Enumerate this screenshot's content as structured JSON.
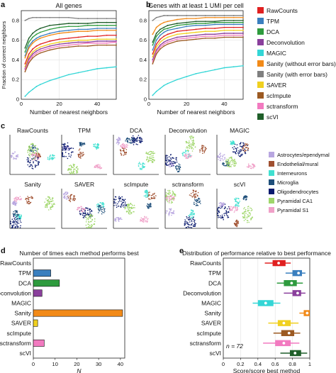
{
  "panel_labels": {
    "a": "a",
    "b": "b",
    "c": "c",
    "d": "d",
    "e": "e"
  },
  "colors": {
    "RawCounts": "#e02020",
    "TPM": "#3a7fbf",
    "DCA": "#2e9b3e",
    "Deconvolution": "#8a3f9c",
    "MAGIC": "#33d6d6",
    "Sanity (without error bars)": "#f28a18",
    "Sanity (with error bars)": "#7f7f7f",
    "SAVER": "#f0d020",
    "scImpute": "#9c5a22",
    "sctransform": "#f27ac0",
    "scVI": "#1f5f2a"
  },
  "legend_methods": [
    "RawCounts",
    "TPM",
    "DCA",
    "Deconvolution",
    "MAGIC",
    "Sanity (without error bars)",
    "Sanity (with error bars)",
    "SAVER",
    "scImpute",
    "sctransform",
    "scVI"
  ],
  "cell_types": [
    {
      "name": "Astrocytes/ependymal",
      "color": "#b8a6e0"
    },
    {
      "name": "Endothelial/mural",
      "color": "#a05030"
    },
    {
      "name": "Interneurons",
      "color": "#40e0d0"
    },
    {
      "name": "Microglia",
      "color": "#1f4f7a"
    },
    {
      "name": "Oligodendrocytes",
      "color": "#0a1a6e"
    },
    {
      "name": "Pyramidal CA1",
      "color": "#9fd66a"
    },
    {
      "name": "Pyramidal S1",
      "color": "#f0a0c8"
    }
  ],
  "umap_titles": [
    "RawCounts",
    "TPM",
    "DCA",
    "Deconvolution",
    "MAGIC",
    "Sanity",
    "SAVER",
    "scImpute",
    "sctransform",
    "scVI"
  ],
  "chart_data": [
    {
      "type": "line",
      "title": "All genes",
      "xlabel": "Number of nearest neighbors",
      "ylabel": "Fraction of correct neighbors",
      "xlim": [
        0,
        50
      ],
      "ylim": [
        0,
        0.9
      ],
      "xticks": [
        0,
        20,
        40
      ],
      "yticks": [
        0,
        0.2,
        0.4,
        0.6,
        0.8
      ],
      "grid": true,
      "x": [
        2,
        4,
        6,
        8,
        10,
        15,
        20,
        25,
        30,
        35,
        40,
        45,
        50
      ],
      "series": [
        {
          "name": "Sanity (with error bars)",
          "values": [
            0.8,
            0.82,
            0.83,
            0.83,
            0.83,
            0.83,
            0.83,
            0.83,
            0.82,
            0.82,
            0.82,
            0.82,
            0.82
          ]
        },
        {
          "name": "scVI",
          "values": [
            0.52,
            0.62,
            0.67,
            0.7,
            0.72,
            0.75,
            0.76,
            0.77,
            0.77,
            0.77,
            0.78,
            0.78,
            0.78
          ]
        },
        {
          "name": "DCA",
          "values": [
            0.48,
            0.58,
            0.63,
            0.66,
            0.68,
            0.71,
            0.73,
            0.74,
            0.74,
            0.75,
            0.75,
            0.75,
            0.75
          ]
        },
        {
          "name": "TPM",
          "values": [
            0.44,
            0.54,
            0.59,
            0.62,
            0.64,
            0.67,
            0.69,
            0.7,
            0.71,
            0.71,
            0.72,
            0.72,
            0.72
          ]
        },
        {
          "name": "Sanity (without error bars)",
          "values": [
            0.42,
            0.52,
            0.57,
            0.6,
            0.62,
            0.65,
            0.67,
            0.68,
            0.69,
            0.69,
            0.7,
            0.7,
            0.7
          ]
        },
        {
          "name": "RawCounts",
          "values": [
            0.36,
            0.46,
            0.51,
            0.54,
            0.56,
            0.59,
            0.61,
            0.62,
            0.63,
            0.64,
            0.64,
            0.65,
            0.65
          ]
        },
        {
          "name": "SAVER",
          "values": [
            0.33,
            0.43,
            0.48,
            0.51,
            0.53,
            0.56,
            0.58,
            0.59,
            0.6,
            0.6,
            0.61,
            0.61,
            0.61
          ]
        },
        {
          "name": "Deconvolution",
          "values": [
            0.31,
            0.41,
            0.46,
            0.49,
            0.51,
            0.54,
            0.56,
            0.57,
            0.58,
            0.58,
            0.59,
            0.59,
            0.59
          ]
        },
        {
          "name": "sctransform",
          "values": [
            0.3,
            0.39,
            0.44,
            0.47,
            0.49,
            0.52,
            0.54,
            0.55,
            0.56,
            0.57,
            0.57,
            0.57,
            0.58
          ]
        },
        {
          "name": "scImpute",
          "values": [
            0.28,
            0.37,
            0.42,
            0.45,
            0.47,
            0.5,
            0.52,
            0.53,
            0.54,
            0.54,
            0.55,
            0.55,
            0.55
          ]
        },
        {
          "name": "MAGIC",
          "values": [
            0.03,
            0.07,
            0.1,
            0.13,
            0.15,
            0.19,
            0.22,
            0.25,
            0.27,
            0.29,
            0.31,
            0.32,
            0.33
          ]
        }
      ]
    },
    {
      "type": "line",
      "title": "Genes with at least 1 UMI per cell",
      "xlabel": "Number of nearest neighbors",
      "ylabel": "",
      "xlim": [
        0,
        50
      ],
      "ylim": [
        0,
        0.9
      ],
      "xticks": [
        0,
        20,
        40
      ],
      "yticks": [
        0,
        0.2,
        0.4,
        0.6,
        0.8
      ],
      "grid": true,
      "x": [
        2,
        4,
        6,
        8,
        10,
        15,
        20,
        25,
        30,
        35,
        40,
        45,
        50
      ],
      "series": [
        {
          "name": "Sanity (with error bars)",
          "values": [
            0.8,
            0.83,
            0.84,
            0.85,
            0.85,
            0.85,
            0.85,
            0.85,
            0.85,
            0.85,
            0.85,
            0.85,
            0.85
          ]
        },
        {
          "name": "Sanity (without error bars)",
          "values": [
            0.66,
            0.73,
            0.76,
            0.78,
            0.79,
            0.81,
            0.82,
            0.82,
            0.83,
            0.83,
            0.83,
            0.83,
            0.83
          ]
        },
        {
          "name": "scVI",
          "values": [
            0.58,
            0.67,
            0.71,
            0.73,
            0.75,
            0.77,
            0.78,
            0.79,
            0.79,
            0.79,
            0.8,
            0.8,
            0.8
          ]
        },
        {
          "name": "DCA",
          "values": [
            0.55,
            0.64,
            0.68,
            0.71,
            0.72,
            0.75,
            0.76,
            0.77,
            0.77,
            0.78,
            0.78,
            0.78,
            0.78
          ]
        },
        {
          "name": "TPM",
          "values": [
            0.5,
            0.6,
            0.65,
            0.68,
            0.7,
            0.72,
            0.74,
            0.75,
            0.75,
            0.76,
            0.76,
            0.76,
            0.76
          ]
        },
        {
          "name": "RawCounts",
          "values": [
            0.46,
            0.56,
            0.61,
            0.64,
            0.66,
            0.69,
            0.7,
            0.71,
            0.72,
            0.72,
            0.73,
            0.73,
            0.73
          ]
        },
        {
          "name": "SAVER",
          "values": [
            0.43,
            0.53,
            0.58,
            0.61,
            0.63,
            0.66,
            0.67,
            0.68,
            0.69,
            0.69,
            0.7,
            0.7,
            0.7
          ]
        },
        {
          "name": "Deconvolution",
          "values": [
            0.4,
            0.5,
            0.55,
            0.58,
            0.6,
            0.63,
            0.64,
            0.65,
            0.66,
            0.66,
            0.67,
            0.67,
            0.67
          ]
        },
        {
          "name": "sctransform",
          "values": [
            0.38,
            0.48,
            0.53,
            0.56,
            0.58,
            0.61,
            0.62,
            0.63,
            0.64,
            0.64,
            0.65,
            0.65,
            0.65
          ]
        },
        {
          "name": "scImpute",
          "values": [
            0.36,
            0.46,
            0.51,
            0.54,
            0.56,
            0.59,
            0.6,
            0.61,
            0.62,
            0.62,
            0.63,
            0.63,
            0.63
          ]
        },
        {
          "name": "MAGIC",
          "values": [
            0.04,
            0.08,
            0.11,
            0.14,
            0.16,
            0.2,
            0.23,
            0.26,
            0.28,
            0.3,
            0.32,
            0.33,
            0.34
          ]
        }
      ]
    },
    {
      "type": "bar",
      "orientation": "horizontal",
      "title": "Number of times each method performs best",
      "xlabel": "N",
      "xlim": [
        0,
        42
      ],
      "xticks": [
        0,
        10,
        20,
        30,
        40
      ],
      "categories": [
        "RawCounts",
        "TPM",
        "DCA",
        "Deconvolution",
        "MAGIC",
        "Sanity",
        "SAVER",
        "scImpute",
        "sctransform",
        "scVI"
      ],
      "category_labels": [
        "RawCounts",
        "TPM",
        "DCA",
        "lDeconvolution",
        "MAGIC",
        "Sanity",
        "SAVER",
        "scImpute",
        "sctransform",
        "scVI"
      ],
      "values": [
        0,
        8,
        12,
        4,
        0,
        41,
        2,
        0,
        5,
        0
      ]
    },
    {
      "type": "box",
      "orientation": "horizontal",
      "title": "Distribution of performance relative to best performance",
      "xlabel": "Score/score best method",
      "xlim": [
        0,
        1.0
      ],
      "xticks": [
        0,
        0.2,
        0.4,
        0.6,
        0.8,
        1.0
      ],
      "annotation": "n = 72",
      "categories": [
        "RawCounts",
        "TPM",
        "DCA",
        "Deconvolution",
        "MAGIC",
        "Sanity",
        "SAVER",
        "scImpute",
        "sctransform",
        "scVI"
      ],
      "boxes": [
        {
          "min": 0.48,
          "q1": 0.57,
          "median": 0.64,
          "q3": 0.72,
          "max": 0.78
        },
        {
          "min": 0.72,
          "q1": 0.8,
          "median": 0.87,
          "q3": 0.91,
          "max": 0.95
        },
        {
          "min": 0.62,
          "q1": 0.7,
          "median": 0.79,
          "q3": 0.85,
          "max": 0.92
        },
        {
          "min": 0.7,
          "q1": 0.8,
          "median": 0.86,
          "q3": 0.9,
          "max": 0.95
        },
        {
          "min": 0.34,
          "q1": 0.4,
          "median": 0.49,
          "q3": 0.58,
          "max": 0.66
        },
        {
          "min": 0.88,
          "q1": 0.93,
          "median": 0.97,
          "q3": 1.0,
          "max": 1.0
        },
        {
          "min": 0.52,
          "q1": 0.63,
          "median": 0.7,
          "q3": 0.78,
          "max": 0.87
        },
        {
          "min": 0.58,
          "q1": 0.67,
          "median": 0.76,
          "q3": 0.82,
          "max": 0.89
        },
        {
          "min": 0.46,
          "q1": 0.6,
          "median": 0.7,
          "q3": 0.78,
          "max": 0.88
        },
        {
          "min": 0.66,
          "q1": 0.77,
          "median": 0.83,
          "q3": 0.9,
          "max": 0.97
        }
      ],
      "box_series": [
        "RawCounts",
        "TPM",
        "DCA",
        "Deconvolution",
        "MAGIC",
        "Sanity (without error bars)",
        "SAVER",
        "scImpute",
        "sctransform",
        "scVI"
      ]
    }
  ]
}
